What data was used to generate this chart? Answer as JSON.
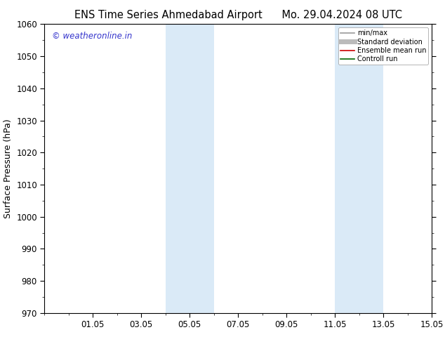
{
  "title_left": "ENS Time Series Ahmedabad Airport",
  "title_right": "Mo. 29.04.2024 08 UTC",
  "ylabel": "Surface Pressure (hPa)",
  "ylim": [
    970,
    1060
  ],
  "yticks": [
    970,
    980,
    990,
    1000,
    1010,
    1020,
    1030,
    1040,
    1050,
    1060
  ],
  "xtick_labels": [
    "01.05",
    "03.05",
    "05.05",
    "07.05",
    "09.05",
    "11.05",
    "13.05",
    "15.05"
  ],
  "xtick_positions": [
    3,
    5,
    7,
    9,
    11,
    13,
    15,
    17
  ],
  "xlim": [
    1,
    17
  ],
  "weekend_bands": [
    {
      "x_start": 6.0,
      "x_end": 8.0
    },
    {
      "x_start": 13.0,
      "x_end": 15.0
    }
  ],
  "band_color": "#daeaf7",
  "watermark_text": "© weatheronline.in",
  "watermark_color": "#3333cc",
  "legend_items": [
    {
      "label": "min/max",
      "color": "#999999",
      "lw": 1.2,
      "style": "-"
    },
    {
      "label": "Standard deviation",
      "color": "#bbbbbb",
      "lw": 5,
      "style": "-"
    },
    {
      "label": "Ensemble mean run",
      "color": "#cc0000",
      "lw": 1.2,
      "style": "-"
    },
    {
      "label": "Controll run",
      "color": "#006600",
      "lw": 1.2,
      "style": "-"
    }
  ],
  "bg_color": "#ffffff",
  "title_fontsize": 10.5,
  "axis_label_fontsize": 9,
  "tick_fontsize": 8.5,
  "watermark_fontsize": 8.5
}
